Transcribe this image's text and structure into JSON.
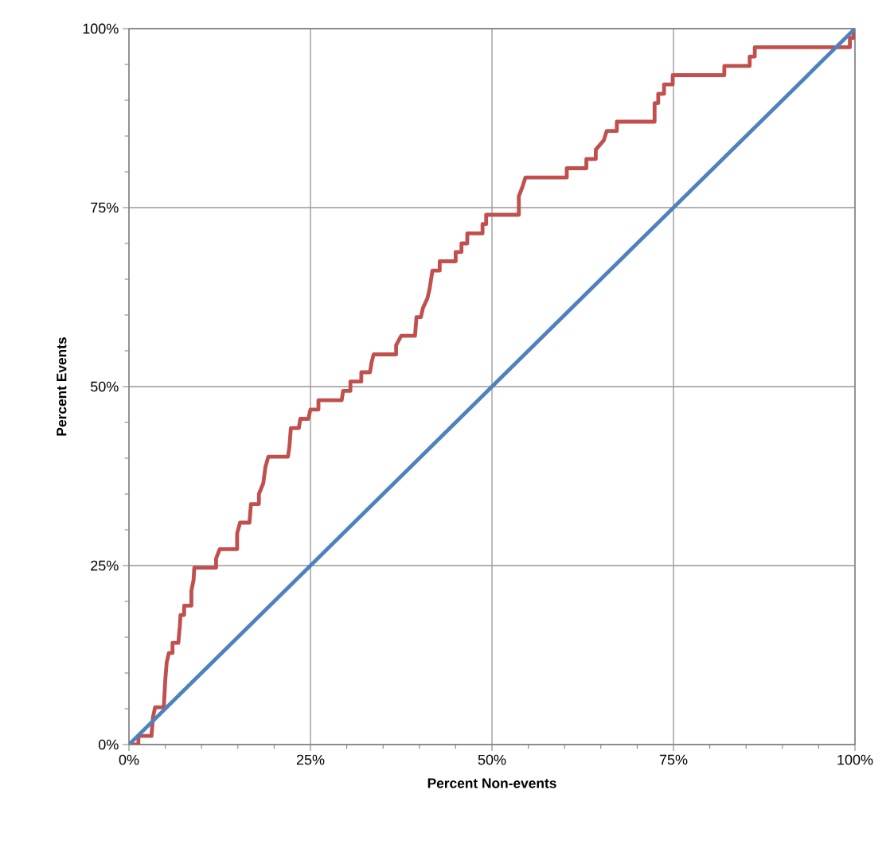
{
  "chart_data": {
    "type": "line",
    "xlabel": "Percent Non-events",
    "ylabel": "Percent Events",
    "xlim": [
      0,
      100
    ],
    "ylim": [
      0,
      100
    ],
    "xticks": [
      {
        "value": 0,
        "label": "0%"
      },
      {
        "value": 25,
        "label": "25%"
      },
      {
        "value": 50,
        "label": "50%"
      },
      {
        "value": 75,
        "label": "75%"
      },
      {
        "value": 100,
        "label": "100%"
      }
    ],
    "yticks": [
      {
        "value": 0,
        "label": "0%"
      },
      {
        "value": 25,
        "label": "25%"
      },
      {
        "value": 50,
        "label": "50%"
      },
      {
        "value": 75,
        "label": "75%"
      },
      {
        "value": 100,
        "label": "100%"
      }
    ],
    "grid": true,
    "marker": "none",
    "line_style": "solid",
    "series": [
      {
        "color": "#c0504d",
        "x": [
          0,
          1.3,
          1.3,
          3.1,
          3.3,
          3.6,
          4.8,
          5.0,
          5.2,
          5.5,
          6.0,
          6.0,
          6.8,
          7.0,
          7.1,
          7.6,
          7.6,
          8.6,
          8.6,
          8.9,
          9.0,
          12.0,
          12.0,
          12.5,
          14.9,
          14.9,
          15.3,
          16.6,
          16.8,
          17.9,
          17.9,
          18.5,
          18.8,
          19.2,
          21.9,
          22.1,
          22.3,
          23.4,
          23.6,
          24.7,
          25.0,
          26.1,
          26.1,
          29.3,
          29.5,
          30.5,
          30.5,
          32.0,
          32.0,
          33.2,
          33.4,
          33.7,
          36.8,
          36.8,
          37.5,
          39.4,
          39.6,
          40.2,
          40.5,
          41.1,
          41.4,
          41.8,
          42.8,
          42.8,
          45.0,
          45.0,
          45.8,
          45.8,
          46.6,
          46.6,
          48.7,
          48.7,
          49.2,
          49.2,
          53.7,
          53.7,
          54.2,
          54.6,
          60.3,
          60.3,
          63.0,
          63.0,
          64.3,
          64.3,
          65.4,
          65.8,
          67.2,
          67.2,
          72.4,
          72.4,
          72.9,
          72.9,
          73.7,
          73.7,
          74.9,
          74.9,
          82.0,
          82.0,
          85.5,
          85.5,
          86.2,
          86.2,
          99.3,
          99.3,
          99.8,
          99.8
        ],
        "values": [
          0,
          0,
          1.2,
          1.2,
          3.8,
          5.2,
          5.2,
          9.0,
          11.5,
          12.8,
          12.8,
          14.2,
          14.2,
          16.5,
          18.1,
          18.1,
          19.4,
          19.4,
          21.5,
          23.0,
          24.7,
          24.7,
          26.0,
          27.3,
          27.3,
          29.5,
          31.0,
          31.0,
          33.6,
          33.6,
          35.0,
          36.5,
          38.8,
          40.2,
          40.2,
          41.6,
          44.2,
          44.2,
          45.5,
          45.5,
          46.8,
          46.8,
          48.1,
          48.1,
          49.4,
          49.4,
          50.7,
          50.7,
          52.0,
          52.0,
          53.3,
          54.5,
          54.5,
          55.8,
          57.1,
          57.1,
          59.7,
          59.7,
          61.0,
          62.3,
          63.6,
          66.2,
          66.2,
          67.5,
          67.5,
          68.8,
          68.8,
          70.0,
          70.0,
          71.4,
          71.4,
          72.7,
          72.7,
          74.0,
          74.0,
          76.6,
          77.9,
          79.2,
          79.2,
          80.5,
          80.5,
          81.8,
          81.8,
          83.1,
          84.4,
          85.7,
          85.7,
          87.0,
          87.0,
          89.6,
          89.6,
          90.9,
          90.9,
          92.2,
          92.2,
          93.5,
          93.5,
          94.8,
          94.8,
          96.1,
          96.1,
          97.4,
          97.4,
          98.7,
          98.7,
          100
        ]
      },
      {
        "color": "#4f81bd",
        "x": [
          0,
          100
        ],
        "values": [
          0,
          100
        ]
      }
    ]
  }
}
